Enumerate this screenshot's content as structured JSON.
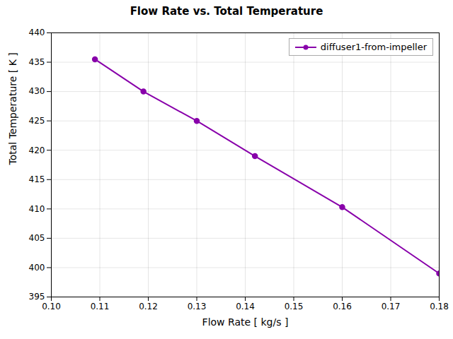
{
  "chart_data": {
    "type": "line",
    "title": "Flow Rate vs. Total Temperature",
    "xlabel": "Flow Rate [ kg/s ]",
    "ylabel": "Total Temperature [ K ]",
    "x": [
      0.109,
      0.119,
      0.13,
      0.142,
      0.16,
      0.18
    ],
    "series": [
      {
        "name": "diffuser1-from-impeller",
        "color": "#8800AA",
        "marker": "circle",
        "values": [
          435.5,
          430.0,
          425.0,
          419.0,
          410.3,
          399.0
        ]
      }
    ],
    "xlim": [
      0.1,
      0.18
    ],
    "ylim": [
      395,
      440
    ],
    "xticks": [
      {
        "value": 0.1,
        "label": "0.10"
      },
      0.11,
      0.12,
      0.13,
      0.14,
      0.15,
      0.16,
      0.17,
      0.18
    ],
    "yticks": [
      395,
      400,
      405,
      410,
      415,
      420,
      425,
      430,
      435,
      440
    ],
    "grid": true,
    "legend": "upper right"
  }
}
